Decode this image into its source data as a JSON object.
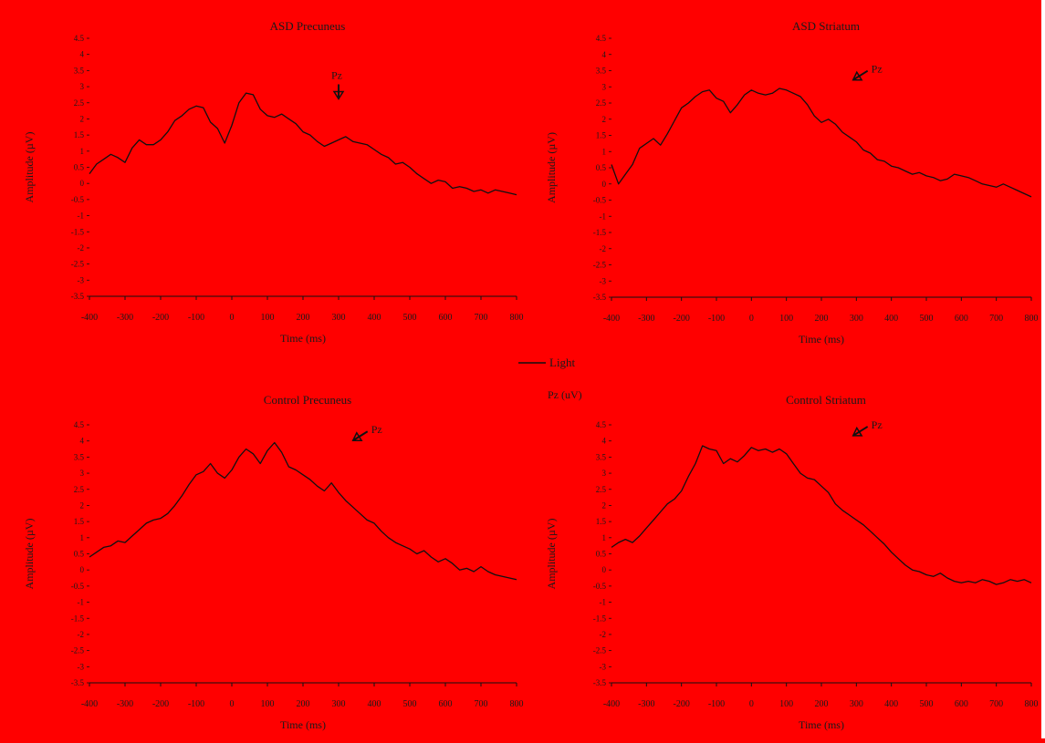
{
  "chart_data": [
    {
      "type": "line",
      "title": "ASD Precuneus",
      "xlabel": "Time (ms)",
      "ylabel": "Amplitude (µV)",
      "xlim": [
        -400,
        800
      ],
      "ylim": [
        -3.5,
        4.5
      ],
      "x_ticks": [
        -400,
        -300,
        -200,
        -100,
        0,
        100,
        200,
        300,
        400,
        500,
        600,
        700,
        800
      ],
      "y_ticks": [
        -3.5,
        -3,
        -2.5,
        -2,
        -1.5,
        -1,
        -0.5,
        0,
        0.5,
        1,
        1.5,
        2,
        2.5,
        3,
        3.5,
        4,
        4.5
      ],
      "annotation": {
        "label": "Pz",
        "x": 300,
        "y": 2.45,
        "direction": "down"
      },
      "series": [
        {
          "x": [
            -400,
            -380,
            -360,
            -340,
            -320,
            -300,
            -280,
            -260,
            -240,
            -220,
            -200,
            -180,
            -160,
            -140,
            -120,
            -100,
            -80,
            -60,
            -40,
            -20,
            0,
            20,
            40,
            60,
            80,
            100,
            120,
            140,
            160,
            180,
            200,
            220,
            240,
            260,
            280,
            300,
            320,
            340,
            360,
            380,
            400,
            420,
            440,
            460,
            480,
            500,
            520,
            540,
            560,
            580,
            600,
            620,
            640,
            660,
            680,
            700,
            720,
            740,
            760,
            780,
            800
          ],
          "y": [
            0.3,
            0.6,
            0.75,
            0.9,
            0.8,
            0.65,
            1.1,
            1.35,
            1.2,
            1.2,
            1.35,
            1.6,
            1.95,
            2.1,
            2.3,
            2.4,
            2.35,
            1.9,
            1.7,
            1.25,
            1.8,
            2.5,
            2.8,
            2.75,
            2.3,
            2.1,
            2.05,
            2.15,
            2.0,
            1.85,
            1.6,
            1.5,
            1.3,
            1.15,
            1.25,
            1.35,
            1.45,
            1.3,
            1.25,
            1.2,
            1.05,
            0.9,
            0.8,
            0.6,
            0.65,
            0.5,
            0.3,
            0.15,
            0.0,
            0.1,
            0.05,
            -0.15,
            -0.1,
            -0.15,
            -0.25,
            -0.2,
            -0.3,
            -0.2,
            -0.25,
            -0.3,
            -0.35
          ]
        }
      ]
    },
    {
      "type": "line",
      "title": "ASD Striatum",
      "xlabel": "Time (ms)",
      "ylabel": "Amplitude (µV)",
      "xlim": [
        -400,
        800
      ],
      "ylim": [
        -3.5,
        4.5
      ],
      "x_ticks": [
        -400,
        -300,
        -200,
        -100,
        0,
        100,
        200,
        300,
        400,
        500,
        600,
        700,
        800
      ],
      "y_ticks": [
        -3.5,
        -3,
        -2.5,
        -2,
        -1.5,
        -1,
        -0.5,
        0,
        0.5,
        1,
        1.5,
        2,
        2.5,
        3,
        3.5,
        4,
        4.5
      ],
      "annotation": {
        "label": "Pz",
        "x": 280,
        "y": 3.1,
        "direction": "down-left"
      },
      "series": [
        {
          "x": [
            -400,
            -380,
            -360,
            -340,
            -320,
            -300,
            -280,
            -260,
            -240,
            -220,
            -200,
            -180,
            -160,
            -140,
            -120,
            -100,
            -80,
            -60,
            -40,
            -20,
            0,
            20,
            40,
            60,
            80,
            100,
            120,
            140,
            160,
            180,
            200,
            220,
            240,
            260,
            280,
            300,
            320,
            340,
            360,
            380,
            400,
            420,
            440,
            460,
            480,
            500,
            520,
            540,
            560,
            580,
            600,
            620,
            640,
            660,
            680,
            700,
            720,
            740,
            760,
            780,
            800
          ],
          "y": [
            0.6,
            0.0,
            0.3,
            0.6,
            1.1,
            1.25,
            1.4,
            1.2,
            1.55,
            1.95,
            2.35,
            2.5,
            2.7,
            2.85,
            2.9,
            2.65,
            2.55,
            2.2,
            2.45,
            2.75,
            2.9,
            2.8,
            2.75,
            2.8,
            2.95,
            2.9,
            2.8,
            2.7,
            2.45,
            2.1,
            1.9,
            2.0,
            1.85,
            1.6,
            1.45,
            1.3,
            1.05,
            0.95,
            0.75,
            0.7,
            0.55,
            0.5,
            0.4,
            0.3,
            0.35,
            0.25,
            0.2,
            0.1,
            0.15,
            0.3,
            0.25,
            0.2,
            0.1,
            0.0,
            -0.05,
            -0.1,
            0.0,
            -0.1,
            -0.2,
            -0.3,
            -0.4
          ]
        }
      ]
    },
    {
      "type": "line",
      "title": "Control Precuneus",
      "xlabel": "Time (ms)",
      "ylabel": "Amplitude (µV)",
      "xlim": [
        -400,
        800
      ],
      "ylim": [
        -3.5,
        4.5
      ],
      "x_ticks": [
        -400,
        -300,
        -200,
        -100,
        0,
        100,
        200,
        300,
        400,
        500,
        600,
        700,
        800
      ],
      "y_ticks": [
        -3.5,
        -3,
        -2.5,
        -2,
        -1.5,
        -1,
        -0.5,
        0,
        0.5,
        1,
        1.5,
        2,
        2.5,
        3,
        3.5,
        4,
        4.5
      ],
      "annotation": {
        "label": "Pz",
        "x": 330,
        "y": 3.9,
        "direction": "down-left"
      },
      "series": [
        {
          "x": [
            -400,
            -380,
            -360,
            -340,
            -320,
            -300,
            -280,
            -260,
            -240,
            -220,
            -200,
            -180,
            -160,
            -140,
            -120,
            -100,
            -80,
            -60,
            -40,
            -20,
            0,
            20,
            40,
            60,
            80,
            100,
            120,
            140,
            160,
            180,
            200,
            220,
            240,
            260,
            280,
            300,
            320,
            340,
            360,
            380,
            400,
            420,
            440,
            460,
            480,
            500,
            520,
            540,
            560,
            580,
            600,
            620,
            640,
            660,
            680,
            700,
            720,
            740,
            760,
            780,
            800
          ],
          "y": [
            0.4,
            0.55,
            0.7,
            0.75,
            0.9,
            0.85,
            1.05,
            1.25,
            1.45,
            1.55,
            1.6,
            1.75,
            2.0,
            2.3,
            2.65,
            2.95,
            3.05,
            3.3,
            3.0,
            2.85,
            3.1,
            3.5,
            3.75,
            3.6,
            3.3,
            3.7,
            3.95,
            3.65,
            3.2,
            3.1,
            2.95,
            2.8,
            2.6,
            2.45,
            2.7,
            2.4,
            2.15,
            1.95,
            1.75,
            1.55,
            1.45,
            1.2,
            1.0,
            0.85,
            0.75,
            0.65,
            0.5,
            0.6,
            0.4,
            0.25,
            0.35,
            0.2,
            0.0,
            0.05,
            -0.05,
            0.1,
            -0.05,
            -0.15,
            -0.2,
            -0.25,
            -0.3
          ]
        }
      ]
    },
    {
      "type": "line",
      "title": "Control Striatum",
      "xlabel": "Time (ms)",
      "ylabel": "Amplitude (µV)",
      "xlim": [
        -400,
        800
      ],
      "ylim": [
        -3.5,
        4.5
      ],
      "x_ticks": [
        -400,
        -300,
        -200,
        -100,
        0,
        100,
        200,
        300,
        400,
        500,
        600,
        700,
        800
      ],
      "y_ticks": [
        -3.5,
        -3,
        -2.5,
        -2,
        -1.5,
        -1,
        -0.5,
        0,
        0.5,
        1,
        1.5,
        2,
        2.5,
        3,
        3.5,
        4,
        4.5
      ],
      "annotation": {
        "label": "Pz",
        "x": 280,
        "y": 4.05,
        "direction": "down-left"
      },
      "series": [
        {
          "x": [
            -400,
            -380,
            -360,
            -340,
            -320,
            -300,
            -280,
            -260,
            -240,
            -220,
            -200,
            -180,
            -160,
            -140,
            -120,
            -100,
            -80,
            -60,
            -40,
            -20,
            0,
            20,
            40,
            60,
            80,
            100,
            120,
            140,
            160,
            180,
            200,
            220,
            240,
            260,
            280,
            300,
            320,
            340,
            360,
            380,
            400,
            420,
            440,
            460,
            480,
            500,
            520,
            540,
            560,
            580,
            600,
            620,
            640,
            660,
            680,
            700,
            720,
            740,
            760,
            780,
            800
          ],
          "y": [
            0.7,
            0.85,
            0.95,
            0.85,
            1.05,
            1.3,
            1.55,
            1.8,
            2.05,
            2.2,
            2.45,
            2.9,
            3.3,
            3.85,
            3.75,
            3.7,
            3.3,
            3.45,
            3.35,
            3.55,
            3.8,
            3.7,
            3.75,
            3.65,
            3.75,
            3.6,
            3.3,
            3.0,
            2.85,
            2.8,
            2.6,
            2.4,
            2.05,
            1.85,
            1.7,
            1.55,
            1.4,
            1.2,
            1.0,
            0.8,
            0.55,
            0.35,
            0.15,
            0.0,
            -0.05,
            -0.15,
            -0.2,
            -0.1,
            -0.25,
            -0.35,
            -0.4,
            -0.35,
            -0.4,
            -0.3,
            -0.35,
            -0.45,
            -0.4,
            -0.3,
            -0.35,
            -0.3,
            -0.4
          ]
        }
      ]
    }
  ],
  "legend": {
    "label": "Light"
  },
  "side_label": "Pz (uV)",
  "colors": {
    "background": "#ff0000",
    "line": "#111111",
    "edge": "#ffffff"
  }
}
